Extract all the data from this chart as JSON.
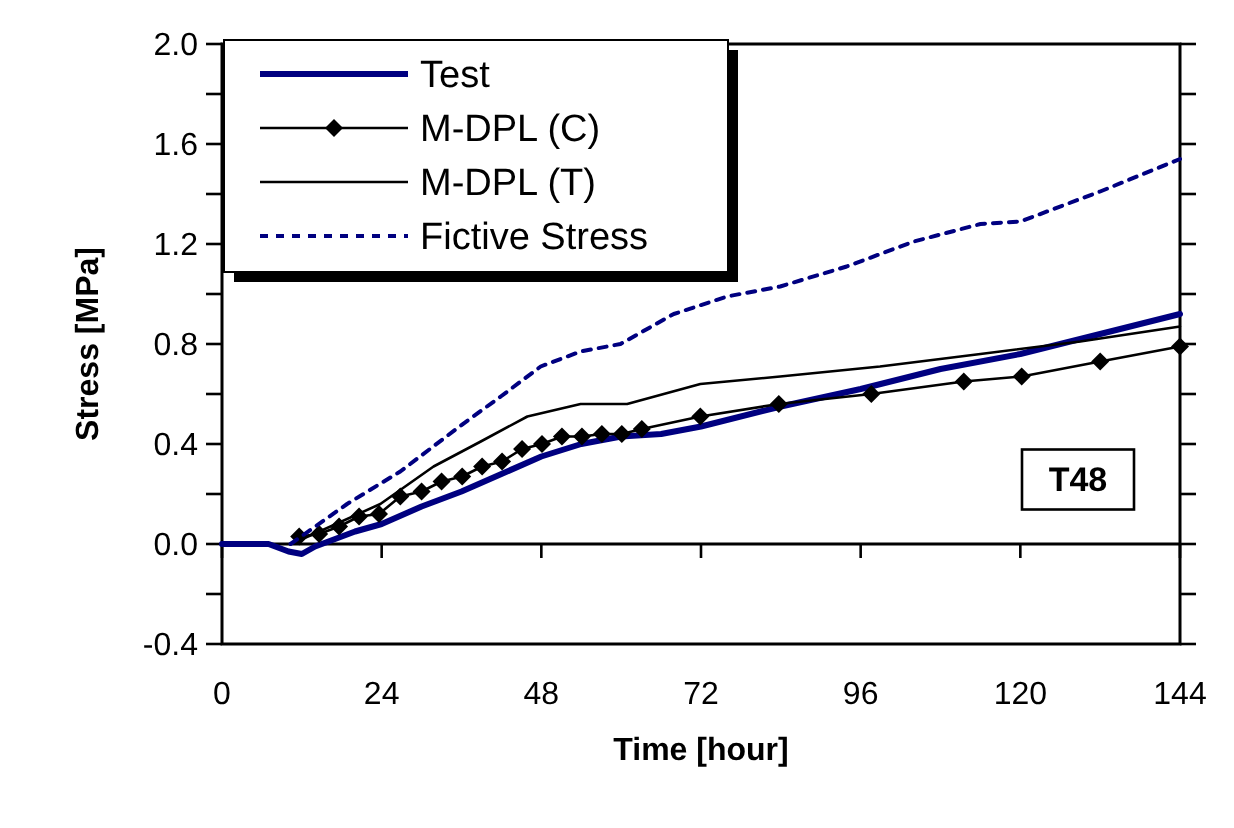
{
  "chart_data": {
    "type": "line",
    "xlabel": "Time [hour]",
    "ylabel": "Stress [MPa]",
    "xlim": [
      0,
      144
    ],
    "xticks": [
      0,
      24,
      48,
      72,
      96,
      120,
      144
    ],
    "ylim": [
      -0.4,
      2.0
    ],
    "yticks": [
      {
        "value": -0.4,
        "label": "-0.4"
      },
      {
        "value": -0.2,
        "label": null
      },
      {
        "value": 0,
        "label": "0.0"
      },
      {
        "value": 0.2,
        "label": null
      },
      {
        "value": 0.4,
        "label": "0.4"
      },
      {
        "value": 0.6,
        "label": null
      },
      {
        "value": 0.8,
        "label": "0.8"
      },
      {
        "value": 1.0,
        "label": null
      },
      {
        "value": 1.2,
        "label": "1.2"
      },
      {
        "value": 1.4,
        "label": null
      },
      {
        "value": 1.6,
        "label": "1.6"
      },
      {
        "value": 1.8,
        "label": null
      },
      {
        "value": 2.0,
        "label": "2.0"
      }
    ],
    "legend": "top left",
    "annotations": [
      "T48"
    ],
    "series": [
      {
        "name": "Test",
        "color": "#000080",
        "marker": "none",
        "line_style": "solid",
        "x": [
          0,
          7,
          10,
          12,
          14,
          20,
          24,
          30,
          36,
          42,
          48,
          54,
          60,
          66,
          72,
          84,
          96,
          108,
          120,
          132,
          144
        ],
        "values": [
          0,
          0,
          -0.03,
          -0.04,
          -0.01,
          0.05,
          0.08,
          0.15,
          0.21,
          0.28,
          0.35,
          0.4,
          0.43,
          0.44,
          0.47,
          0.55,
          0.62,
          0.7,
          0.76,
          0.84,
          0.92
        ]
      },
      {
        "name": "M-DPL (C)",
        "color": "#000000",
        "marker": "diamond",
        "line_style": "solid",
        "x": [
          11.6,
          14.6,
          17.6,
          20.6,
          23.6,
          26.8,
          30,
          33,
          36.1,
          39.1,
          42.1,
          45.1,
          48.1,
          51.1,
          54.1,
          57.1,
          60.1,
          63.1,
          71.9,
          83.7,
          97.6,
          111.5,
          120.2,
          132,
          144
        ],
        "values": [
          0.03,
          0.04,
          0.07,
          0.11,
          0.12,
          0.19,
          0.21,
          0.25,
          0.27,
          0.31,
          0.33,
          0.38,
          0.4,
          0.43,
          0.43,
          0.44,
          0.44,
          0.46,
          0.51,
          0.56,
          0.6,
          0.65,
          0.67,
          0.73,
          0.79
        ]
      },
      {
        "name": "M-DPL (T)",
        "color": "#000000",
        "marker": "none",
        "line_style": "solid",
        "x": [
          10.3,
          13.8,
          23.8,
          31.8,
          38.9,
          45.9,
          53.9,
          60.9,
          71.9,
          83.9,
          98.9,
          114,
          129,
          144
        ],
        "values": [
          0,
          0.04,
          0.16,
          0.31,
          0.41,
          0.51,
          0.56,
          0.56,
          0.64,
          0.67,
          0.71,
          0.76,
          0.81,
          0.87
        ]
      },
      {
        "name": "Fictive Stress",
        "color": "#000080",
        "marker": "none",
        "line_style": "dashed",
        "x": [
          10.3,
          18.8,
          26.8,
          35.7,
          41.9,
          47.9,
          53.9,
          59.9,
          67.9,
          75.9,
          83.9,
          93.9,
          104,
          114,
          120,
          132,
          144
        ],
        "values": [
          0,
          0.16,
          0.29,
          0.47,
          0.59,
          0.71,
          0.77,
          0.8,
          0.92,
          0.99,
          1.03,
          1.11,
          1.21,
          1.28,
          1.29,
          1.41,
          1.54
        ]
      }
    ]
  }
}
